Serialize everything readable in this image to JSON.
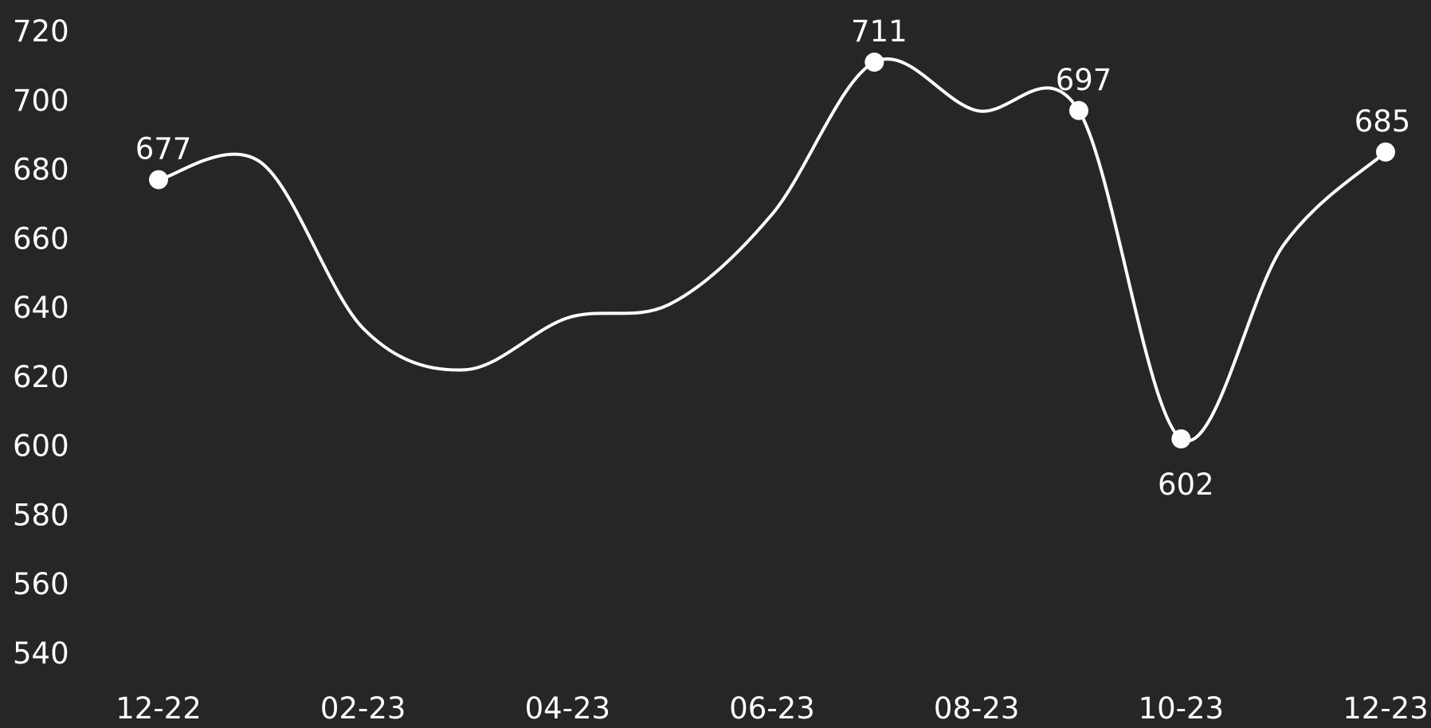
{
  "colors": {
    "background": "#262626",
    "line": "#ffffff",
    "text": "#ffffff"
  },
  "chart_data": {
    "type": "line",
    "title": "",
    "xlabel": "",
    "ylabel": "",
    "grid": false,
    "legend": "none",
    "smooth": true,
    "x": [
      "12-22",
      "01-23",
      "02-23",
      "03-23",
      "04-23",
      "05-23",
      "06-23",
      "07-23",
      "08-23",
      "09-23",
      "10-23",
      "11-23",
      "12-23"
    ],
    "values": [
      677,
      682,
      634,
      622,
      637,
      641,
      667,
      711,
      697,
      697,
      602,
      658,
      685
    ],
    "markers": [
      {
        "x": "12-22",
        "value": 677,
        "label": "677"
      },
      {
        "x": "07-23",
        "value": 711,
        "label": "711"
      },
      {
        "x": "09-23",
        "value": 697,
        "label": "697"
      },
      {
        "x": "10-23",
        "value": 602,
        "label": "602"
      },
      {
        "x": "12-23",
        "value": 685,
        "label": "685"
      }
    ],
    "x_ticks": [
      "12-22",
      "02-23",
      "04-23",
      "06-23",
      "08-23",
      "10-23",
      "12-23"
    ],
    "y_ticks": [
      "720",
      "700",
      "680",
      "660",
      "640",
      "620",
      "600",
      "580",
      "560",
      "540"
    ],
    "ylim": [
      540,
      720
    ]
  }
}
